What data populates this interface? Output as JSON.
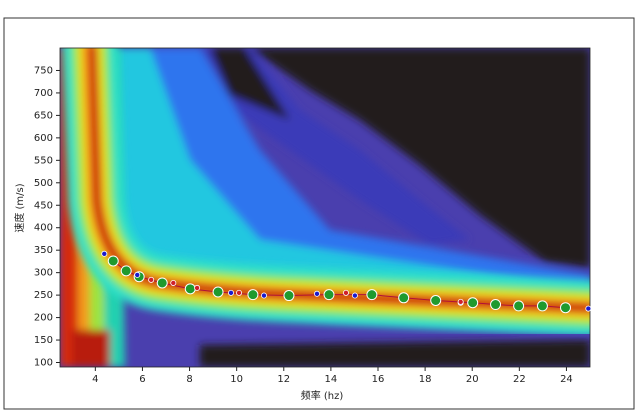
{
  "chart_data": {
    "type": "scatter",
    "x_label": "频率 (hz)",
    "y_label": "速度 (m/s)",
    "xlim": [
      2.5,
      25
    ],
    "ylim": [
      90,
      800
    ],
    "xticks": [
      4,
      6,
      8,
      10,
      12,
      14,
      16,
      18,
      20,
      22,
      24
    ],
    "yticks": [
      100,
      150,
      200,
      250,
      300,
      350,
      400,
      450,
      500,
      550,
      600,
      650,
      700,
      750
    ],
    "series": [
      {
        "color": "#1f9a2e",
        "line_color": "#b0103a",
        "x": [
          4.76,
          5.31,
          5.86,
          6.84,
          8.03,
          9.21,
          10.69,
          12.22,
          13.92,
          15.74,
          17.09,
          18.45,
          20.02,
          20.99,
          21.97,
          22.98,
          23.96
        ],
        "values": [
          326,
          304,
          291,
          277,
          264,
          257,
          251,
          249,
          251,
          251,
          244,
          238,
          233,
          229,
          226,
          226,
          222
        ]
      },
      {
        "color": "#1a1acc",
        "x": [
          4.38,
          5.78,
          9.76,
          11.16,
          13.41,
          15.02,
          19.51,
          24.93
        ],
        "values": [
          342,
          295,
          255,
          249,
          253,
          249,
          233,
          220
        ]
      },
      {
        "color": "#d0202a",
        "x": [
          6.37,
          7.31,
          8.32,
          10.1,
          14.64,
          19.51
        ],
        "values": [
          284,
          277,
          266,
          255,
          255,
          235
        ]
      }
    ]
  }
}
